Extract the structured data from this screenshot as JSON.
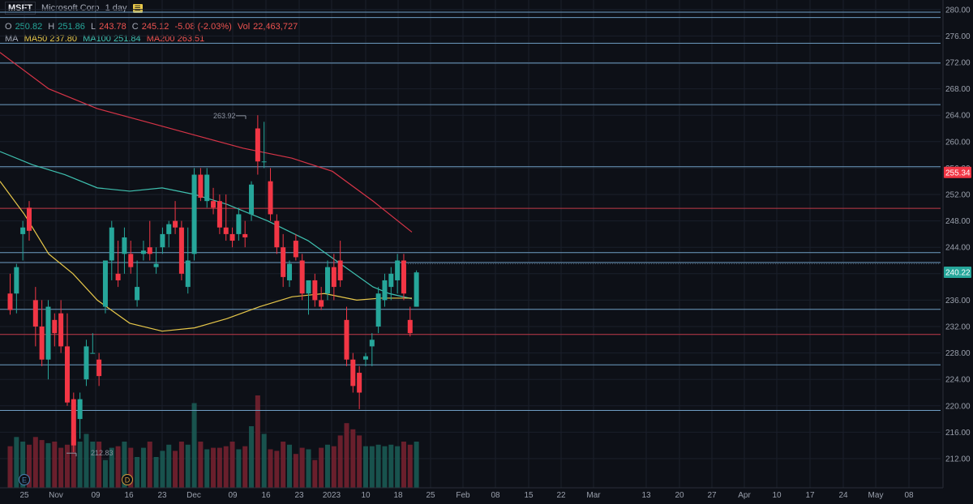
{
  "header": {
    "symbol": "MSFT",
    "company": "Microsoft Corp",
    "interval": "1 day",
    "open_label": "O",
    "open": "250.82",
    "high_label": "H",
    "high": "251.86",
    "low_label": "L",
    "low": "243.78",
    "close_label": "C",
    "close": "245.12",
    "change": "-5.08 (-2.03%)",
    "vol_label": "Vol",
    "vol": "22,463,727",
    "ma_label": "MA",
    "ma50": "MA50 237.80",
    "ma100": "MA100 251.84",
    "ma200": "MA200 263.51"
  },
  "colors": {
    "up": "#26a69a",
    "down": "#f23645",
    "ma50": "#e8c84a",
    "ma100": "#3fc1b0",
    "ma200": "#d63447",
    "level_blue": "#6f9ec4",
    "level_red": "#c23b4a",
    "background": "#0d1017"
  },
  "chart_data": {
    "type": "candlestick",
    "y_axis": {
      "ylim": [
        209.5,
        281.5
      ],
      "ticks": [
        212,
        216,
        220,
        224,
        228,
        232,
        236,
        240,
        244,
        248,
        252,
        256,
        260,
        264,
        268,
        272,
        276,
        280
      ]
    },
    "x_axis_labels": [
      "25",
      "Nov",
      "09",
      "16",
      "23",
      "Dec",
      "09",
      "16",
      "23",
      "2023",
      "10",
      "18",
      "25",
      "Feb",
      "08",
      "15",
      "22",
      "Mar",
      "13",
      "20",
      "27",
      "Apr",
      "10",
      "17",
      "24",
      "May",
      "08"
    ],
    "price_badges": [
      {
        "label": "255.34",
        "value": 255.34,
        "color": "#f23645"
      },
      {
        "label": "240.22",
        "value": 240.22,
        "color": "#26a69a"
      }
    ],
    "annotations": [
      {
        "text": "263.92",
        "value": 263.92
      },
      {
        "text": "212.83",
        "value": 212.83
      }
    ],
    "event_markers": [
      "E",
      "D"
    ],
    "horizontal_levels": [
      {
        "value": 279.6,
        "color": "blue"
      },
      {
        "value": 278.8,
        "color": "blue"
      },
      {
        "value": 274.9,
        "color": "blue"
      },
      {
        "value": 271.9,
        "color": "blue"
      },
      {
        "value": 265.6,
        "color": "blue"
      },
      {
        "value": 256.2,
        "color": "blue"
      },
      {
        "value": 249.9,
        "color": "red"
      },
      {
        "value": 243.2,
        "color": "blue"
      },
      {
        "value": 241.7,
        "color": "blue"
      },
      {
        "value": 234.6,
        "color": "blue"
      },
      {
        "value": 230.8,
        "color": "red"
      },
      {
        "value": 226.2,
        "color": "blue"
      },
      {
        "value": 219.3,
        "color": "blue"
      }
    ],
    "candles": [
      {
        "o": 237,
        "h": 240,
        "l": 233.8,
        "c": 234.5
      },
      {
        "o": 237,
        "h": 241.5,
        "l": 234,
        "c": 241
      },
      {
        "o": 246,
        "h": 248,
        "l": 242,
        "c": 247
      },
      {
        "o": 250,
        "h": 251,
        "l": 245,
        "c": 246.5
      },
      {
        "o": 236,
        "h": 238,
        "l": 229,
        "c": 232
      },
      {
        "o": 232,
        "h": 236,
        "l": 226,
        "c": 227
      },
      {
        "o": 227,
        "h": 236,
        "l": 224,
        "c": 235
      },
      {
        "o": 233,
        "h": 234,
        "l": 229,
        "c": 231
      },
      {
        "o": 234,
        "h": 236,
        "l": 228,
        "c": 229
      },
      {
        "o": 229,
        "h": 234,
        "l": 220,
        "c": 220.5
      },
      {
        "o": 221,
        "h": 222,
        "l": 213,
        "c": 214
      },
      {
        "o": 218,
        "h": 222,
        "l": 215,
        "c": 221
      },
      {
        "o": 224,
        "h": 230,
        "l": 223,
        "c": 229
      },
      {
        "o": 228,
        "h": 231,
        "l": 228,
        "c": 228
      },
      {
        "o": 227,
        "h": 228,
        "l": 223,
        "c": 224.5
      },
      {
        "o": 235,
        "h": 242,
        "l": 234,
        "c": 242
      },
      {
        "o": 242,
        "h": 248,
        "l": 239,
        "c": 247
      },
      {
        "o": 240,
        "h": 245,
        "l": 238,
        "c": 239
      },
      {
        "o": 243,
        "h": 247,
        "l": 240,
        "c": 245.5
      },
      {
        "o": 243,
        "h": 245,
        "l": 240,
        "c": 241
      },
      {
        "o": 236,
        "h": 242,
        "l": 235,
        "c": 238
      },
      {
        "o": 243,
        "h": 245,
        "l": 242,
        "c": 243.5
      },
      {
        "o": 244,
        "h": 248,
        "l": 242,
        "c": 243
      },
      {
        "o": 241,
        "h": 244,
        "l": 240,
        "c": 241.5
      },
      {
        "o": 244,
        "h": 247,
        "l": 243,
        "c": 246
      },
      {
        "o": 246,
        "h": 248,
        "l": 244,
        "c": 247.5
      },
      {
        "o": 248,
        "h": 251,
        "l": 246,
        "c": 247
      },
      {
        "o": 247,
        "h": 248,
        "l": 239,
        "c": 240
      },
      {
        "o": 238,
        "h": 247,
        "l": 237,
        "c": 242
      },
      {
        "o": 243,
        "h": 256,
        "l": 242,
        "c": 255
      },
      {
        "o": 255,
        "h": 256,
        "l": 251,
        "c": 251.5
      },
      {
        "o": 251,
        "h": 256,
        "l": 250,
        "c": 255
      },
      {
        "o": 251,
        "h": 253,
        "l": 249,
        "c": 250
      },
      {
        "o": 251,
        "h": 252,
        "l": 246,
        "c": 247
      },
      {
        "o": 247,
        "h": 252,
        "l": 245,
        "c": 246
      },
      {
        "o": 246,
        "h": 247,
        "l": 244,
        "c": 245
      },
      {
        "o": 246,
        "h": 250,
        "l": 245,
        "c": 249
      },
      {
        "o": 246,
        "h": 248,
        "l": 244,
        "c": 245.5
      },
      {
        "o": 249,
        "h": 254,
        "l": 248,
        "c": 253.5
      },
      {
        "o": 262,
        "h": 264,
        "l": 255,
        "c": 257
      },
      {
        "o": 257,
        "h": 263,
        "l": 256,
        "c": 257
      },
      {
        "o": 254,
        "h": 256,
        "l": 248,
        "c": 249
      },
      {
        "o": 248,
        "h": 249,
        "l": 243,
        "c": 244
      },
      {
        "o": 244,
        "h": 246,
        "l": 238,
        "c": 239.5
      },
      {
        "o": 239,
        "h": 242,
        "l": 238,
        "c": 241.5
      },
      {
        "o": 245,
        "h": 246,
        "l": 242,
        "c": 242.5
      },
      {
        "o": 242,
        "h": 243,
        "l": 236,
        "c": 237
      },
      {
        "o": 237,
        "h": 239,
        "l": 233.8,
        "c": 239
      },
      {
        "o": 239,
        "h": 240,
        "l": 235,
        "c": 236
      },
      {
        "o": 236,
        "h": 238,
        "l": 234.5,
        "c": 235
      },
      {
        "o": 237,
        "h": 242,
        "l": 236,
        "c": 241
      },
      {
        "o": 241,
        "h": 243,
        "l": 236,
        "c": 238
      },
      {
        "o": 242,
        "h": 245,
        "l": 238,
        "c": 239
      },
      {
        "o": 233,
        "h": 235,
        "l": 226,
        "c": 227
      },
      {
        "o": 227,
        "h": 228,
        "l": 222,
        "c": 223
      },
      {
        "o": 225,
        "h": 226,
        "l": 219.5,
        "c": 222
      },
      {
        "o": 227,
        "h": 228,
        "l": 226,
        "c": 227.5
      },
      {
        "o": 229,
        "h": 231,
        "l": 226,
        "c": 230
      },
      {
        "o": 232,
        "h": 238,
        "l": 231,
        "c": 237
      },
      {
        "o": 236,
        "h": 240,
        "l": 235,
        "c": 239
      },
      {
        "o": 238,
        "h": 241,
        "l": 236,
        "c": 240
      },
      {
        "o": 239,
        "h": 243,
        "l": 237,
        "c": 242
      },
      {
        "o": 242,
        "h": 243,
        "l": 236,
        "c": 237
      },
      {
        "o": 233,
        "h": 235,
        "l": 230.5,
        "c": 231
      },
      {
        "o": 235,
        "h": 240.5,
        "l": 235,
        "c": 240.2
      }
    ],
    "volume": [
      0.27,
      0.33,
      0.3,
      0.28,
      0.33,
      0.31,
      0.29,
      0.3,
      0.26,
      0.28,
      0.34,
      0.3,
      0.35,
      0.3,
      0.3,
      0.18,
      0.26,
      0.27,
      0.3,
      0.26,
      0.2,
      0.26,
      0.3,
      0.2,
      0.24,
      0.28,
      0.24,
      0.3,
      0.28,
      0.55,
      0.3,
      0.25,
      0.26,
      0.26,
      0.27,
      0.3,
      0.25,
      0.27,
      0.4,
      0.6,
      0.35,
      0.25,
      0.24,
      0.3,
      0.28,
      0.22,
      0.26,
      0.25,
      0.18,
      0.26,
      0.28,
      0.27,
      0.34,
      0.42,
      0.38,
      0.34,
      0.27,
      0.27,
      0.28,
      0.27,
      0.28,
      0.27,
      0.3,
      0.28,
      0.3
    ]
  }
}
